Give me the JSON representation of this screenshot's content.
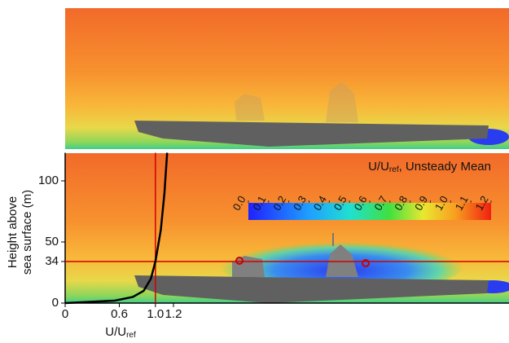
{
  "chart_data": {
    "type": "line",
    "x_label": {
      "main": "U/U",
      "sub": "ref"
    },
    "y_label": [
      "Height above",
      "sea surface (m)"
    ],
    "xlim": [
      0,
      1.2
    ],
    "xticks": [
      0,
      0.6,
      {
        "value": 1,
        "label": "1.0"
      },
      1.2
    ],
    "ylim": [
      0,
      123
    ],
    "yticks": [
      0,
      34,
      50,
      100
    ],
    "series": [
      {
        "color": "#000000",
        "x": [
          0,
          0.55,
          0.75,
          0.87,
          0.95,
          1.0,
          1.06,
          1.1,
          1.13
        ],
        "values": [
          0,
          2,
          5,
          10,
          20,
          34,
          60,
          90,
          123
        ]
      }
    ],
    "colorbar": {
      "title": {
        "main": "U/U",
        "sub": "ref",
        "rest": ", Unsteady Mean"
      },
      "lim": [
        0,
        1.2
      ],
      "ticks": [
        {
          "value": 0,
          "label": "0.0"
        },
        0.1,
        0.2,
        0.3,
        0.4,
        0.5,
        0.6,
        0.7,
        0.8,
        0.9,
        {
          "value": 1,
          "label": "1.0"
        },
        1.1,
        1.2
      ]
    }
  }
}
